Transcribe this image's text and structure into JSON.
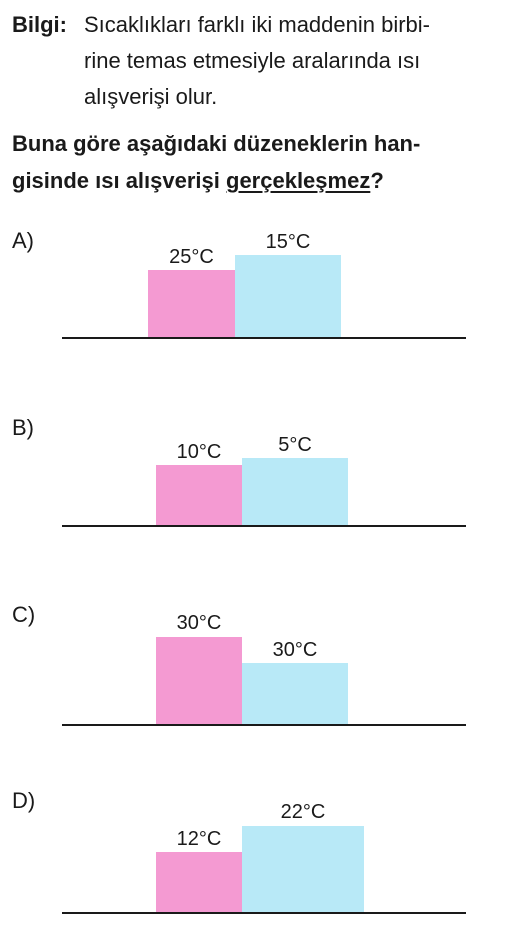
{
  "info": {
    "label": "Bilgi:",
    "lines": [
      "Sıcaklıkları farklı iki maddenin birbi-",
      "rine temas etmesiyle aralarında ısı",
      "alışverişi olur."
    ]
  },
  "question": {
    "line1": "Buna göre aşağıdaki düzeneklerin han-",
    "line2_prefix": "gisinde ısı alışverişi ",
    "line2_negation": "gerçekleşmez",
    "line2_suffix": "?"
  },
  "colors": {
    "left_block": "#f49ad2",
    "right_block": "#b8e9f7"
  },
  "options": [
    {
      "letter": "A)",
      "left_temp": "25°C",
      "right_temp": "15°C"
    },
    {
      "letter": "B)",
      "left_temp": "10°C",
      "right_temp": "5°C"
    },
    {
      "letter": "C)",
      "left_temp": "30°C",
      "right_temp": "30°C"
    },
    {
      "letter": "D)",
      "left_temp": "12°C",
      "right_temp": "22°C"
    }
  ]
}
